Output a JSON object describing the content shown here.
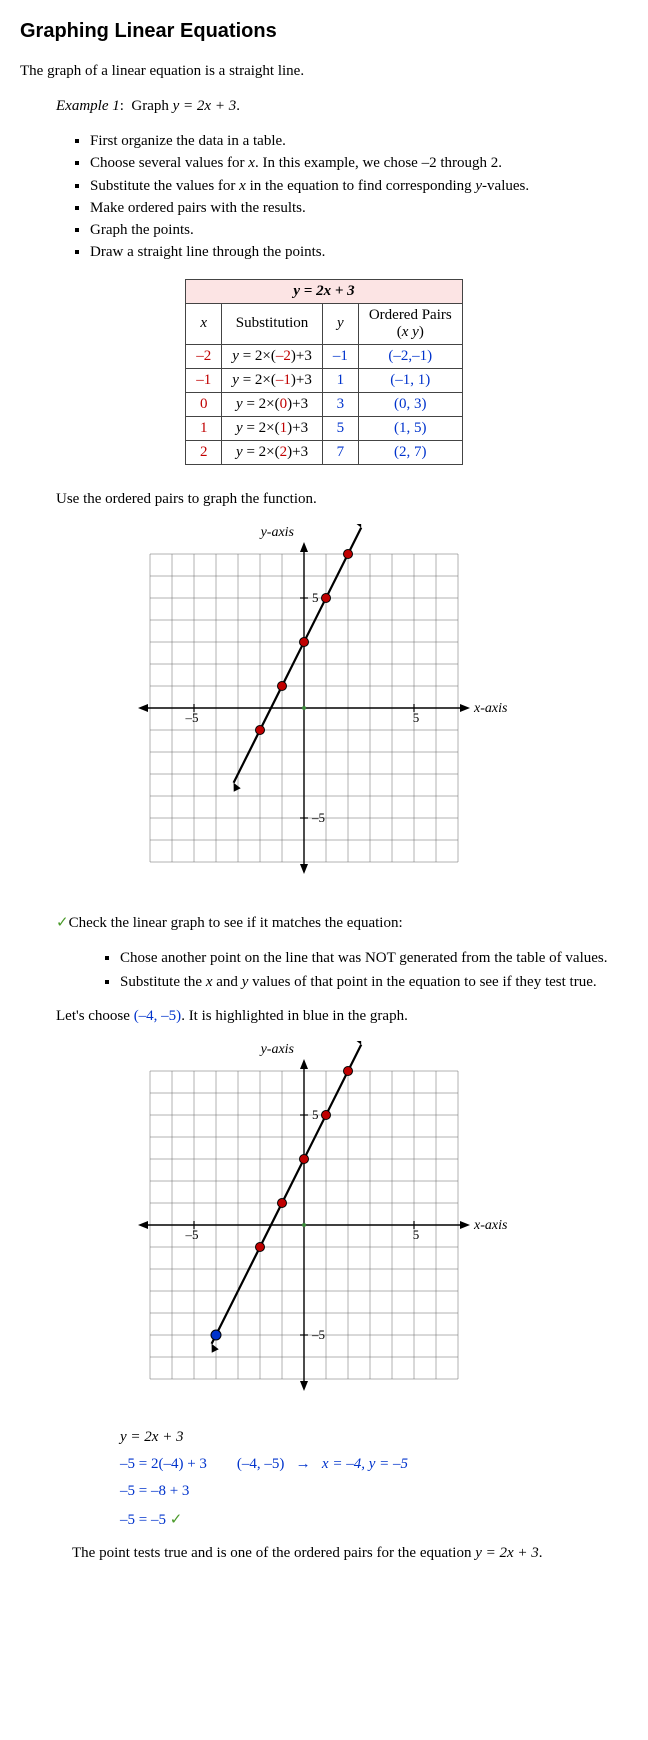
{
  "title": "Graphing Linear Equations",
  "intro": "The graph of a linear equation is a straight line.",
  "example_label": "Example 1",
  "example_prefix": ":  Graph ",
  "example_eq": "y = 2x + 3",
  "example_suffix": ".",
  "steps": [
    "First organize the data in a table.",
    "Choose several values for x.  In this example, we chose –2 through 2.",
    "Substitute the values for x in the equation to find corresponding y-values.",
    "Make ordered pairs with the results.",
    "Graph the points.",
    "Draw a straight line through the points."
  ],
  "table": {
    "eq_header": "y = 2x + 3",
    "col_x": "x",
    "col_sub": "Substitution",
    "col_y": "y",
    "col_pair_l1": "Ordered Pairs",
    "col_pair_l2": "(x y)",
    "rows": [
      {
        "x": "–2",
        "xclass": "red",
        "sub_pre": "y = 2×(",
        "sub_mid": "–2",
        "sub_post": ")+3",
        "y": "–1",
        "pair": "(–2,–1)"
      },
      {
        "x": "–1",
        "xclass": "red",
        "sub_pre": "y = 2×(",
        "sub_mid": "–1",
        "sub_post": ")+3",
        "y": "1",
        "pair": "(–1, 1)"
      },
      {
        "x": "0",
        "xclass": "red",
        "sub_pre": "y = 2×(",
        "sub_mid": "0",
        "sub_post": ")+3",
        "y": "3",
        "pair": "(0, 3)"
      },
      {
        "x": "1",
        "xclass": "red",
        "sub_pre": "y = 2×(",
        "sub_mid": "1",
        "sub_post": ")+3",
        "y": "5",
        "pair": "(1, 5)"
      },
      {
        "x": "2",
        "xclass": "red",
        "sub_pre": "y = 2×(",
        "sub_mid": "2",
        "sub_post": ")+3",
        "y": "7",
        "pair": "(2, 7)"
      }
    ],
    "header_bg": "#fce4e4"
  },
  "use_pairs": "Use the ordered pairs to graph the function.",
  "graph1": {
    "xaxis_label": "x-axis",
    "yaxis_label": "y-axis",
    "tick_xneg": "–5",
    "tick_xpos": "5",
    "tick_yneg": "–5",
    "tick_ypos": "5",
    "grid_color": "#666",
    "axis_color": "#000",
    "line_color": "#000",
    "point_fill": "#c00000",
    "point_stroke": "#000",
    "points": [
      [
        -2,
        -1
      ],
      [
        -1,
        1
      ],
      [
        0,
        3
      ],
      [
        1,
        5
      ],
      [
        2,
        7
      ]
    ],
    "line_start": [
      -3.2,
      -3.4
    ],
    "line_end": [
      2.6,
      8.2
    ]
  },
  "check_text": "Check the linear graph to see if it matches the equation:",
  "check_steps": [
    "Chose another point on the line that was NOT generated from the table of values.",
    "Substitute the x and y values of that point in the equation to see if they test true."
  ],
  "lets_choose_pre": "Let's choose ",
  "lets_choose_pt": "(–4, –5)",
  "lets_choose_post": ".  It is highlighted in blue in the graph.",
  "graph2": {
    "xaxis_label": "x-axis",
    "yaxis_label": "y-axis",
    "tick_xneg": "–5",
    "tick_xpos": "5",
    "tick_yneg": "–5",
    "tick_ypos": "5",
    "grid_color": "#666",
    "axis_color": "#000",
    "line_color": "#000",
    "point_fill": "#c00000",
    "blue_point_fill": "#0033cc",
    "point_stroke": "#000",
    "points": [
      [
        -2,
        -1
      ],
      [
        -1,
        1
      ],
      [
        0,
        3
      ],
      [
        1,
        5
      ],
      [
        2,
        7
      ]
    ],
    "blue_point": [
      -4,
      -5
    ],
    "line_start": [
      -4.2,
      -5.4
    ],
    "line_end": [
      2.6,
      8.2
    ]
  },
  "verify": {
    "l1": "y = 2x + 3",
    "l2a": "–5 = 2(–4) + 3",
    "l2b_pair": "(–4, –5)",
    "l2b_arrow": "→",
    "l2b_xy": "x = –4,  y = –5",
    "l3": "–5 = –8 + 3",
    "l4": "–5 = –5",
    "check": "✓"
  },
  "conclusion_pre": "The point tests true and is one of the ordered pairs for the equation ",
  "conclusion_eq": "y = 2x + 3",
  "conclusion_post": "."
}
